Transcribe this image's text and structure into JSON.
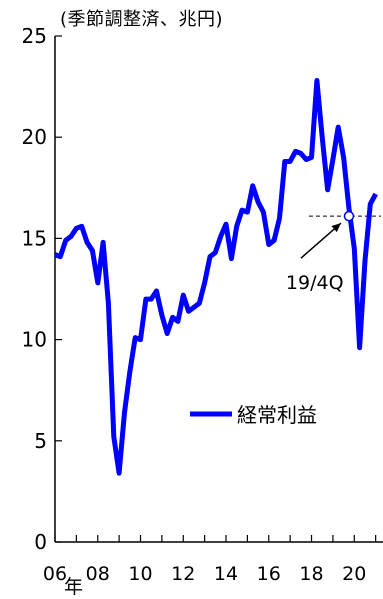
{
  "chart_data": {
    "type": "line",
    "unit_label": "(季節調整済、兆円)",
    "x_unit_label": "年",
    "xlim": [
      2006.0,
      2021.25
    ],
    "ylim": [
      0,
      25
    ],
    "y_ticks": [
      0,
      5,
      10,
      15,
      20,
      25
    ],
    "x_ticks": [
      {
        "value": 2006,
        "label": "06"
      },
      {
        "value": 2008,
        "label": "08"
      },
      {
        "value": 2010,
        "label": "10"
      },
      {
        "value": 2012,
        "label": "12"
      },
      {
        "value": 2014,
        "label": "14"
      },
      {
        "value": 2016,
        "label": "16"
      },
      {
        "value": 2018,
        "label": "18"
      },
      {
        "value": 2020,
        "label": "20"
      }
    ],
    "series": [
      {
        "name": "経常利益",
        "color": "#0000ff",
        "x": [
          2006.0,
          2006.25,
          2006.5,
          2006.75,
          2007.0,
          2007.25,
          2007.5,
          2007.75,
          2008.0,
          2008.25,
          2008.5,
          2008.75,
          2009.0,
          2009.25,
          2009.5,
          2009.75,
          2010.0,
          2010.25,
          2010.5,
          2010.75,
          2011.0,
          2011.25,
          2011.5,
          2011.75,
          2012.0,
          2012.25,
          2012.5,
          2012.75,
          2013.0,
          2013.25,
          2013.5,
          2013.75,
          2014.0,
          2014.25,
          2014.5,
          2014.75,
          2015.0,
          2015.25,
          2015.5,
          2015.75,
          2016.0,
          2016.25,
          2016.5,
          2016.75,
          2017.0,
          2017.25,
          2017.5,
          2017.75,
          2018.0,
          2018.25,
          2018.5,
          2018.75,
          2019.0,
          2019.25,
          2019.5,
          2019.75,
          2020.0,
          2020.25,
          2020.5,
          2020.75,
          2021.0
        ],
        "values": [
          14.2,
          14.1,
          14.9,
          15.1,
          15.5,
          15.6,
          14.8,
          14.4,
          12.8,
          14.8,
          11.8,
          5.2,
          3.4,
          6.4,
          8.4,
          10.1,
          10.0,
          12.0,
          12.0,
          12.4,
          11.2,
          10.3,
          11.1,
          10.9,
          12.2,
          11.4,
          11.6,
          11.8,
          12.8,
          14.1,
          14.3,
          15.1,
          15.7,
          14.0,
          15.6,
          16.4,
          16.3,
          17.6,
          16.8,
          16.3,
          14.7,
          14.9,
          16.0,
          18.8,
          18.8,
          19.3,
          19.2,
          18.9,
          19.0,
          22.8,
          20.0,
          17.4,
          18.9,
          20.5,
          19.0,
          16.5,
          14.5,
          9.6,
          13.9,
          16.7,
          17.2
        ]
      }
    ],
    "annotation": {
      "label": "19/4Q",
      "x": 2019.75,
      "y": 16.1
    }
  }
}
